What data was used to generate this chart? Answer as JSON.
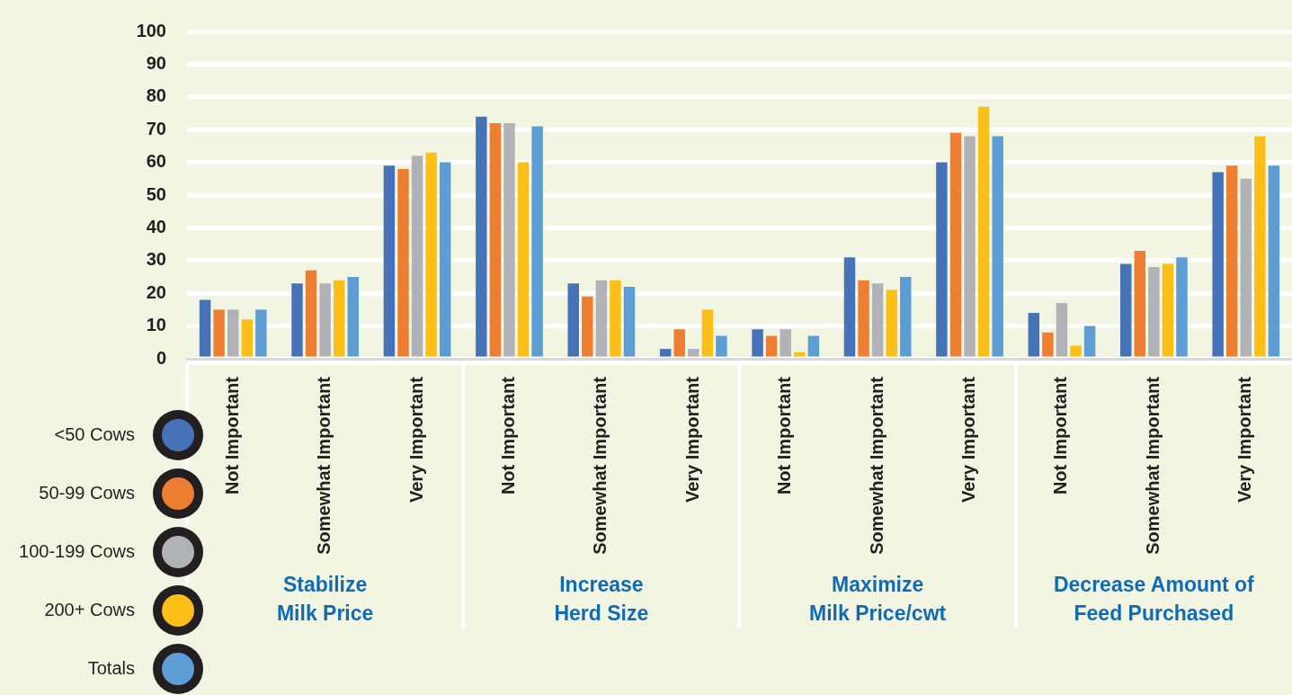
{
  "chart_data": {
    "type": "bar",
    "categories": [
      "Not Important",
      "Somewhat Important",
      "Very Important",
      "Not Important",
      "Somewhat Important",
      "Very Important",
      "Not Important",
      "Somewhat Important",
      "Very Important",
      "Not Important",
      "Somewhat Important",
      "Very Important"
    ],
    "series": [
      {
        "name": "<50 Cows",
        "color": "#4672b8",
        "values": [
          18,
          23,
          59,
          74,
          23,
          3,
          9,
          31,
          60,
          14,
          29,
          57
        ]
      },
      {
        "name": "50-99 Cows",
        "color": "#ee7e32",
        "values": [
          15,
          27,
          58,
          72,
          19,
          9,
          7,
          24,
          69,
          8,
          33,
          59
        ]
      },
      {
        "name": "100-199 Cows",
        "color": "#b1b2b5",
        "values": [
          15,
          23,
          62,
          72,
          24,
          3,
          9,
          23,
          68,
          17,
          28,
          55
        ]
      },
      {
        "name": "200+ Cows",
        "color": "#fcbf17",
        "values": [
          12,
          24,
          63,
          60,
          24,
          15,
          2,
          21,
          77,
          4,
          29,
          68
        ]
      },
      {
        "name": "Totals",
        "color": "#5d9dd3",
        "values": [
          15,
          25,
          60,
          71,
          22,
          7,
          7,
          25,
          68,
          10,
          31,
          59
        ]
      }
    ],
    "ylim": [
      0,
      100
    ],
    "yticks": [
      0,
      10,
      20,
      30,
      40,
      50,
      60,
      70,
      80,
      90,
      100
    ],
    "grid": "y",
    "legend": "left",
    "annotations": [
      "Stabilize\nMilk Price",
      "Increase\nHerd Size",
      "Maximize\nMilk Price/cwt",
      "Decrease Amount of\nFeed Purchased"
    ]
  }
}
